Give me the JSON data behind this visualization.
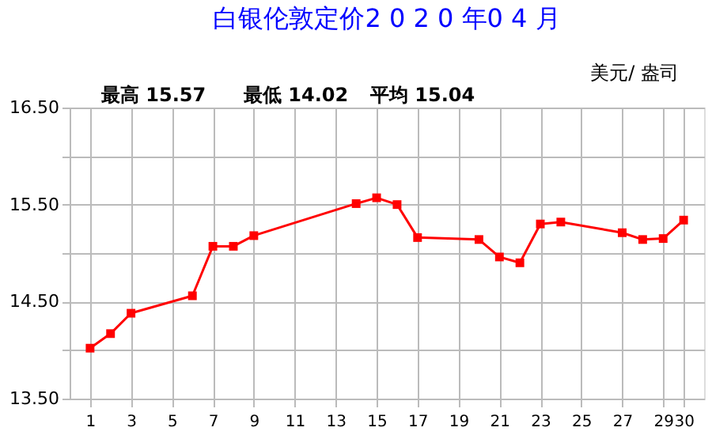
{
  "chart_data": {
    "type": "line",
    "title": "白银伦敦定价2 0 2 0 年0 4 月",
    "annotations": [
      "最高 15.57",
      "最低 14.02",
      "平均 15.04",
      "美元/ 盎司"
    ],
    "x": [
      1,
      2,
      3,
      6,
      7,
      8,
      9,
      14,
      15,
      16,
      17,
      20,
      21,
      22,
      23,
      24,
      27,
      28,
      29,
      30
    ],
    "series": [
      {
        "color": "#ff0000",
        "values": [
          14.02,
          14.17,
          14.38,
          14.56,
          15.07,
          15.07,
          15.18,
          15.51,
          15.57,
          15.5,
          15.16,
          15.14,
          14.96,
          14.9,
          15.3,
          15.32,
          15.21,
          15.14,
          15.15,
          15.34
        ]
      }
    ],
    "xlim": [
      0,
      31
    ],
    "xticks": [
      1,
      3,
      5,
      7,
      9,
      11,
      13,
      15,
      17,
      19,
      21,
      23,
      25,
      27,
      29,
      30
    ],
    "ylim": [
      13.5,
      16.5
    ],
    "yticks": [
      {
        "value": 13.5,
        "label": "13.50"
      },
      {
        "value": 14.0,
        "label": null
      },
      {
        "value": 14.5,
        "label": "14.50"
      },
      {
        "value": 15.0,
        "label": null
      },
      {
        "value": 15.5,
        "label": "15.50"
      },
      {
        "value": 16.0,
        "label": null
      },
      {
        "value": 16.5,
        "label": "16.50"
      }
    ],
    "grid": true,
    "marker": "square",
    "line_style": "solid",
    "legend": false
  }
}
